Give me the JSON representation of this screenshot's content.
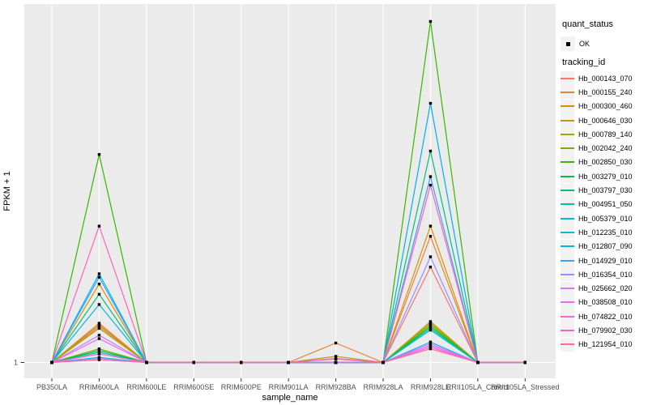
{
  "chart_data": {
    "type": "line",
    "title": "",
    "xlabel": "sample_name",
    "ylabel": "FPKM + 1",
    "y_tick_labels": [
      "1"
    ],
    "y_scale_note": "Only the baseline tick '1' is labeled on the y axis (FPKM + 1). Series values below are relative heights: 0 = baseline (FPKM+1 = 1), 1 = tallest visible peak.",
    "legend_position": "right",
    "grid": "major-white-on-gray",
    "categories": [
      "PB350LA",
      "RRIM600LA",
      "RRIM600LE",
      "RRIM600SE",
      "RRIM600PE",
      "RRIM901LA",
      "RRIM928BA",
      "RRIM928LA",
      "RRIM928LE",
      "RRII105LA_Control",
      "RRII105LA_Stressed"
    ],
    "point_marker": {
      "shape": "square",
      "color": "#000000",
      "status_label": "OK"
    },
    "series": [
      {
        "name": "Hb_000143_070",
        "color": "#F8766D",
        "values": [
          0,
          0.105,
          0,
          0,
          0,
          0,
          0,
          0,
          0.28,
          0,
          0
        ]
      },
      {
        "name": "Hb_000155_240",
        "color": "#EA8331",
        "values": [
          0,
          0.115,
          0,
          0,
          0,
          0,
          0.057,
          0,
          0.37,
          0,
          0
        ]
      },
      {
        "name": "Hb_000300_460",
        "color": "#D89000",
        "values": [
          0,
          0.23,
          0,
          0,
          0,
          0,
          0,
          0,
          0.4,
          0,
          0
        ]
      },
      {
        "name": "Hb_000646_030",
        "color": "#C09B00",
        "values": [
          0,
          0.11,
          0,
          0,
          0,
          0,
          0,
          0,
          0.12,
          0,
          0
        ]
      },
      {
        "name": "Hb_000789_140",
        "color": "#A3A500",
        "values": [
          0,
          0.1,
          0,
          0,
          0,
          0,
          0.018,
          0,
          0.115,
          0,
          0
        ]
      },
      {
        "name": "Hb_002042_240",
        "color": "#7CAE00",
        "values": [
          0,
          0.04,
          0,
          0,
          0,
          0,
          0,
          0,
          0.11,
          0,
          0
        ]
      },
      {
        "name": "Hb_002850_030",
        "color": "#39B600",
        "values": [
          0,
          0.61,
          0,
          0,
          0,
          0,
          0,
          0,
          1.0,
          0,
          0
        ]
      },
      {
        "name": "Hb_003279_010",
        "color": "#00BB4E",
        "values": [
          0,
          0.035,
          0,
          0,
          0,
          0,
          0,
          0,
          0.105,
          0,
          0
        ]
      },
      {
        "name": "Hb_003797_030",
        "color": "#00BF7D",
        "values": [
          0,
          0.2,
          0,
          0,
          0,
          0,
          0,
          0,
          0.62,
          0,
          0
        ]
      },
      {
        "name": "Hb_004951_050",
        "color": "#00C1A3",
        "values": [
          0,
          0.03,
          0,
          0,
          0,
          0,
          0,
          0,
          0.1,
          0,
          0
        ]
      },
      {
        "name": "Hb_005379_010",
        "color": "#00BFC4",
        "values": [
          0,
          0.015,
          0,
          0,
          0,
          0,
          0,
          0,
          0.095,
          0,
          0
        ]
      },
      {
        "name": "Hb_012235_010",
        "color": "#00BAE0",
        "values": [
          0,
          0.17,
          0,
          0,
          0,
          0,
          0,
          0,
          0.06,
          0,
          0
        ]
      },
      {
        "name": "Hb_012807_090",
        "color": "#00B0F6",
        "values": [
          0,
          0.26,
          0,
          0,
          0,
          0,
          0,
          0,
          0.76,
          0,
          0
        ]
      },
      {
        "name": "Hb_014929_010",
        "color": "#35A2FF",
        "values": [
          0,
          0.25,
          0,
          0,
          0,
          0,
          0,
          0,
          0.545,
          0,
          0
        ]
      },
      {
        "name": "Hb_016354_010",
        "color": "#9590FF",
        "values": [
          0,
          0.012,
          0,
          0,
          0,
          0,
          0,
          0,
          0.31,
          0,
          0
        ]
      },
      {
        "name": "Hb_025662_020",
        "color": "#C77CFF",
        "values": [
          0,
          0.08,
          0,
          0,
          0,
          0,
          0,
          0,
          0.055,
          0,
          0
        ]
      },
      {
        "name": "Hb_038508_010",
        "color": "#E76BF3",
        "values": [
          0,
          0.07,
          0,
          0,
          0,
          0,
          0.012,
          0,
          0.05,
          0,
          0
        ]
      },
      {
        "name": "Hb_074822_010",
        "color": "#FA62DB",
        "values": [
          0,
          0.025,
          0,
          0,
          0,
          0,
          0,
          0,
          0.045,
          0,
          0
        ]
      },
      {
        "name": "Hb_079902_030",
        "color": "#FF62BC",
        "values": [
          0,
          0.4,
          0,
          0,
          0,
          0,
          0,
          0,
          0.52,
          0,
          0
        ]
      },
      {
        "name": "Hb_121954_010",
        "color": "#FF6A98",
        "values": [
          0,
          0.008,
          0,
          0,
          0,
          0,
          0.01,
          0,
          0.04,
          0,
          0
        ]
      }
    ]
  },
  "legend": {
    "quant_status_title": "quant_status",
    "quant_status_items": [
      {
        "label": "OK"
      }
    ],
    "tracking_id_title": "tracking_id"
  },
  "colors": {
    "page_bg": "#FFFFFF",
    "panel_bg": "#EBEBEB",
    "grid": "#FFFFFF",
    "key_bg": "#F2F2F2",
    "axis_text": "#4D4D4D",
    "tick_mark": "#333333",
    "title_text": "#000000",
    "marker": "#000000"
  }
}
